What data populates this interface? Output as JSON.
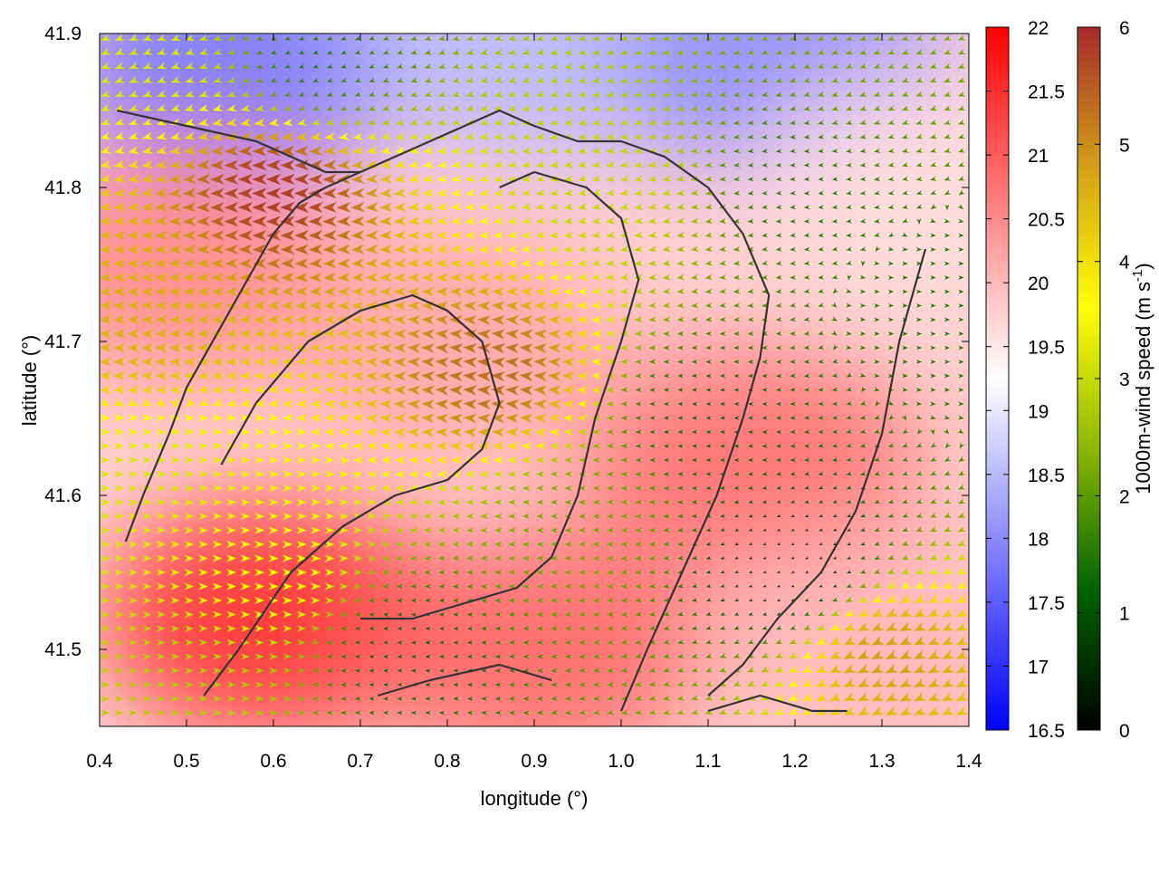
{
  "chart_data": {
    "type": "heatmap",
    "title": "",
    "xlabel": "longitude (°)",
    "ylabel": "latitude (°)",
    "xlim": [
      0.4,
      1.4
    ],
    "ylim": [
      41.45,
      41.9
    ],
    "x_ticks": [
      "0.4",
      "0.5",
      "0.6",
      "0.7",
      "0.8",
      "0.9",
      "1.0",
      "1.1",
      "1.2",
      "1.3",
      "1.4"
    ],
    "y_ticks": [
      "41.5",
      "41.6",
      "41.7",
      "41.8",
      "41.9"
    ],
    "field": {
      "name": "",
      "colorbar_ticks": [
        "16.5",
        "17",
        "17.5",
        "18",
        "18.5",
        "19",
        "19.5",
        "20",
        "20.5",
        "21",
        "21.5",
        "22"
      ],
      "range": [
        16.5,
        22
      ],
      "colors": [
        "#0000ff",
        "#ffffff",
        "#ff0000"
      ],
      "regions": [
        {
          "lon": 0.55,
          "lat": 41.88,
          "value": 17.8
        },
        {
          "lon": 0.9,
          "lat": 41.89,
          "value": 18.5
        },
        {
          "lon": 1.2,
          "lat": 41.88,
          "value": 18.0
        },
        {
          "lon": 1.35,
          "lat": 41.8,
          "value": 19.6
        },
        {
          "lon": 0.5,
          "lat": 41.75,
          "value": 20.5
        },
        {
          "lon": 0.6,
          "lat": 41.52,
          "value": 21.5
        },
        {
          "lon": 1.15,
          "lat": 41.62,
          "value": 20.8
        },
        {
          "lon": 0.9,
          "lat": 41.5,
          "value": 20.9
        },
        {
          "lon": 0.8,
          "lat": 41.7,
          "value": 20.2
        },
        {
          "lon": 1.3,
          "lat": 41.5,
          "value": 20.0
        }
      ]
    },
    "wind": {
      "name": "1000m-wind speed",
      "colorbar_label": "1000m-wind speed (m s",
      "colorbar_label_sup": "-1",
      "colorbar_label_end": ")",
      "colorbar_ticks": [
        "0",
        "1",
        "2",
        "3",
        "4",
        "5",
        "6"
      ],
      "range": [
        0,
        6
      ],
      "colors": [
        "#000000",
        "#006400",
        "#8db600",
        "#ffff00",
        "#d4a017",
        "#a52a2a"
      ],
      "regions": [
        {
          "lon": 0.45,
          "lat": 41.88,
          "speed": 3.2,
          "dir": 200
        },
        {
          "lon": 0.65,
          "lat": 41.88,
          "speed": 1.5,
          "dir": 200
        },
        {
          "lon": 0.6,
          "lat": 41.8,
          "speed": 5.8,
          "dir": 180
        },
        {
          "lon": 0.45,
          "lat": 41.72,
          "speed": 4.6,
          "dir": 180
        },
        {
          "lon": 0.85,
          "lat": 41.68,
          "speed": 5.3,
          "dir": 175
        },
        {
          "lon": 0.45,
          "lat": 41.6,
          "speed": 3.2,
          "dir": 0
        },
        {
          "lon": 0.6,
          "lat": 41.55,
          "speed": 3.6,
          "dir": 0
        },
        {
          "lon": 0.5,
          "lat": 41.48,
          "speed": 2.8,
          "dir": 0
        },
        {
          "lon": 0.75,
          "lat": 41.5,
          "speed": 1.2,
          "dir": 180
        },
        {
          "lon": 1.0,
          "lat": 41.8,
          "speed": 3.0,
          "dir": 190
        },
        {
          "lon": 1.2,
          "lat": 41.8,
          "speed": 1.5,
          "dir": 185
        },
        {
          "lon": 1.3,
          "lat": 41.88,
          "speed": 2.2,
          "dir": 200
        },
        {
          "lon": 1.1,
          "lat": 41.65,
          "speed": 1.2,
          "dir": 180
        },
        {
          "lon": 1.2,
          "lat": 41.55,
          "speed": 0.4,
          "dir": 200
        },
        {
          "lon": 1.3,
          "lat": 41.5,
          "speed": 4.8,
          "dir": 205
        },
        {
          "lon": 0.95,
          "lat": 41.58,
          "speed": 2.2,
          "dir": 180
        },
        {
          "lon": 1.38,
          "lat": 41.72,
          "speed": 1.4,
          "dir": 0
        }
      ]
    },
    "contours": [
      [
        [
          0.42,
          41.85
        ],
        [
          0.5,
          41.84
        ],
        [
          0.58,
          41.83
        ],
        [
          0.62,
          41.82
        ],
        [
          0.66,
          41.81
        ],
        [
          0.7,
          41.81
        ],
        [
          0.74,
          41.82
        ],
        [
          0.78,
          41.83
        ],
        [
          0.82,
          41.84
        ],
        [
          0.86,
          41.85
        ],
        [
          0.9,
          41.84
        ],
        [
          0.95,
          41.83
        ],
        [
          1.0,
          41.83
        ],
        [
          1.05,
          41.82
        ],
        [
          1.1,
          41.8
        ],
        [
          1.14,
          41.77
        ],
        [
          1.17,
          41.73
        ],
        [
          1.16,
          41.69
        ],
        [
          1.14,
          41.65
        ],
        [
          1.11,
          41.6
        ],
        [
          1.07,
          41.55
        ],
        [
          1.03,
          41.5
        ],
        [
          1.0,
          41.46
        ]
      ],
      [
        [
          0.43,
          41.57
        ],
        [
          0.45,
          41.6
        ],
        [
          0.48,
          41.64
        ],
        [
          0.5,
          41.67
        ],
        [
          0.53,
          41.7
        ],
        [
          0.57,
          41.74
        ],
        [
          0.6,
          41.77
        ],
        [
          0.63,
          41.79
        ],
        [
          0.66,
          41.8
        ],
        [
          0.7,
          41.81
        ]
      ],
      [
        [
          0.52,
          41.47
        ],
        [
          0.56,
          41.5
        ],
        [
          0.62,
          41.55
        ],
        [
          0.68,
          41.58
        ],
        [
          0.74,
          41.6
        ],
        [
          0.8,
          41.61
        ],
        [
          0.84,
          41.63
        ],
        [
          0.86,
          41.66
        ],
        [
          0.84,
          41.7
        ],
        [
          0.8,
          41.72
        ],
        [
          0.76,
          41.73
        ],
        [
          0.7,
          41.72
        ],
        [
          0.64,
          41.7
        ],
        [
          0.58,
          41.66
        ],
        [
          0.54,
          41.62
        ]
      ],
      [
        [
          0.7,
          41.52
        ],
        [
          0.76,
          41.52
        ],
        [
          0.82,
          41.53
        ],
        [
          0.88,
          41.54
        ],
        [
          0.92,
          41.56
        ],
        [
          0.95,
          41.6
        ],
        [
          0.97,
          41.65
        ],
        [
          1.0,
          41.7
        ],
        [
          1.02,
          41.74
        ],
        [
          1.0,
          41.78
        ],
        [
          0.96,
          41.8
        ],
        [
          0.9,
          41.81
        ],
        [
          0.86,
          41.8
        ]
      ],
      [
        [
          1.35,
          41.76
        ],
        [
          1.32,
          41.7
        ],
        [
          1.3,
          41.64
        ],
        [
          1.27,
          41.59
        ],
        [
          1.23,
          41.55
        ],
        [
          1.18,
          41.52
        ],
        [
          1.14,
          41.49
        ],
        [
          1.1,
          41.47
        ]
      ],
      [
        [
          0.72,
          41.47
        ],
        [
          0.78,
          41.48
        ],
        [
          0.86,
          41.49
        ],
        [
          0.92,
          41.48
        ]
      ],
      [
        [
          1.1,
          41.46
        ],
        [
          1.16,
          41.47
        ],
        [
          1.22,
          41.46
        ],
        [
          1.26,
          41.46
        ]
      ]
    ]
  }
}
